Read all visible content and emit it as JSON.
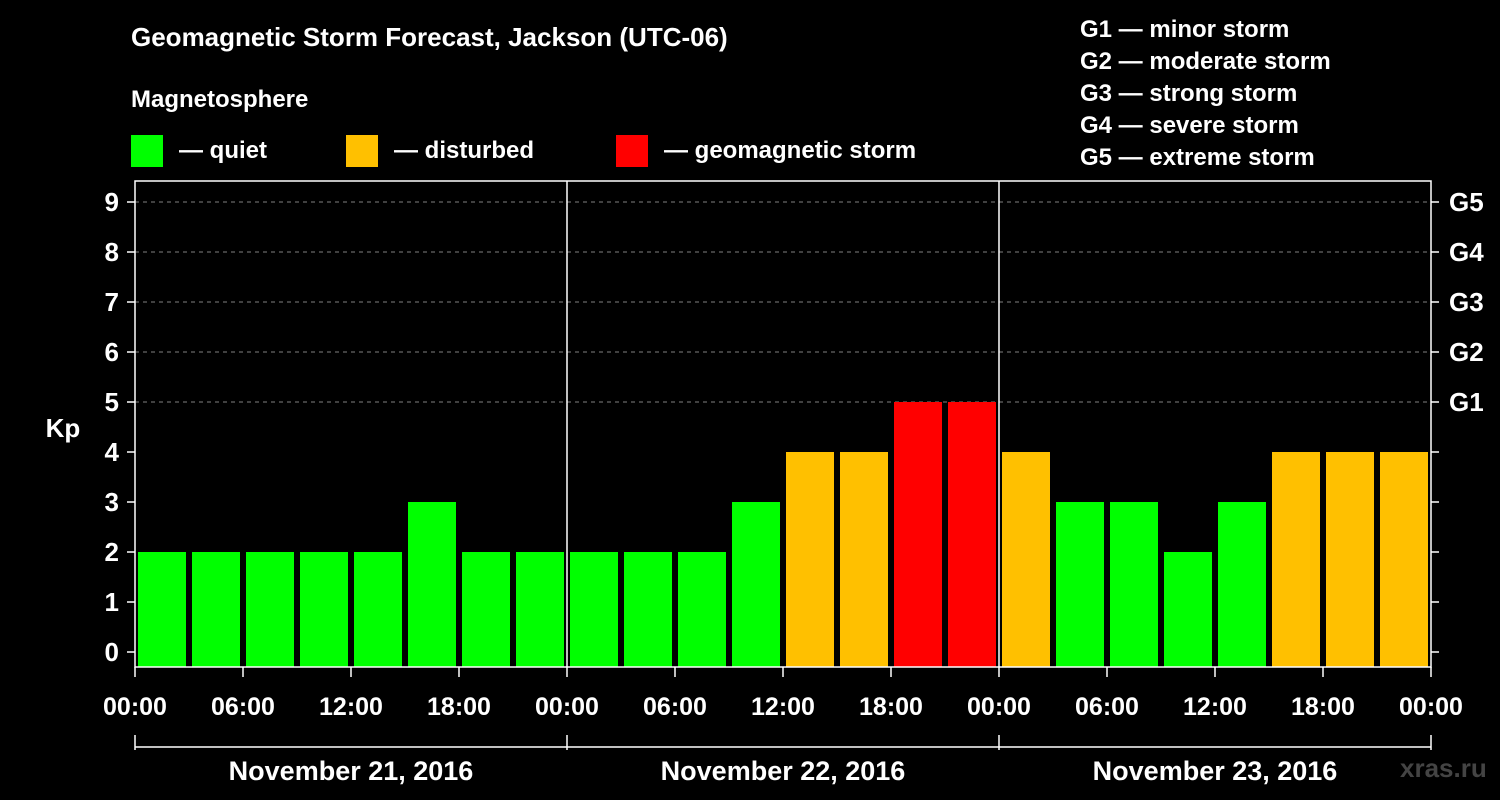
{
  "title": "Geomagnetic Storm Forecast, Jackson (UTC-06)",
  "magnetosphere_label": "Magnetosphere",
  "legend": [
    {
      "label": "— quiet",
      "color": "#00ff00"
    },
    {
      "label": "— disturbed",
      "color": "#ffc000"
    },
    {
      "label": "— geomagnetic storm",
      "color": "#ff0000"
    }
  ],
  "g_levels": [
    "G1 — minor storm",
    "G2 — moderate storm",
    "G3 — strong storm",
    "G4 — severe storm",
    "G5 — extreme storm"
  ],
  "watermark": "xras.ru",
  "colors": {
    "background": "#000000",
    "axes": "#ffffff",
    "grid": "#808080",
    "watermark": "#444444"
  },
  "chart_data": {
    "type": "bar",
    "ylabel": "Kp",
    "ylim": [
      0,
      9
    ],
    "y_ticks": [
      0,
      1,
      2,
      3,
      4,
      5,
      6,
      7,
      8,
      9
    ],
    "right_ticks": [
      {
        "kp": 5,
        "label": "G1"
      },
      {
        "kp": 6,
        "label": "G2"
      },
      {
        "kp": 7,
        "label": "G3"
      },
      {
        "kp": 8,
        "label": "G4"
      },
      {
        "kp": 9,
        "label": "G5"
      }
    ],
    "x_tick_labels": [
      "00:00",
      "06:00",
      "12:00",
      "18:00",
      "00:00",
      "06:00",
      "12:00",
      "18:00",
      "00:00",
      "06:00",
      "12:00",
      "18:00",
      "00:00"
    ],
    "days": [
      "November 21, 2016",
      "November 22, 2016",
      "November 23, 2016"
    ],
    "grid": "dashed horizontal at Kp 5–9",
    "values": [
      2,
      2,
      2,
      2,
      2,
      3,
      2,
      2,
      2,
      2,
      2,
      3,
      4,
      4,
      5,
      5,
      4,
      3,
      3,
      2,
      3,
      4,
      4,
      4
    ],
    "bar_colors": [
      "quiet",
      "quiet",
      "quiet",
      "quiet",
      "quiet",
      "quiet",
      "quiet",
      "quiet",
      "quiet",
      "quiet",
      "quiet",
      "quiet",
      "disturbed",
      "disturbed",
      "storm",
      "storm",
      "disturbed",
      "quiet",
      "quiet",
      "quiet",
      "quiet",
      "disturbed",
      "disturbed",
      "disturbed"
    ],
    "color_map": {
      "quiet": "#00ff00",
      "disturbed": "#ffc000",
      "storm": "#ff0000"
    }
  }
}
